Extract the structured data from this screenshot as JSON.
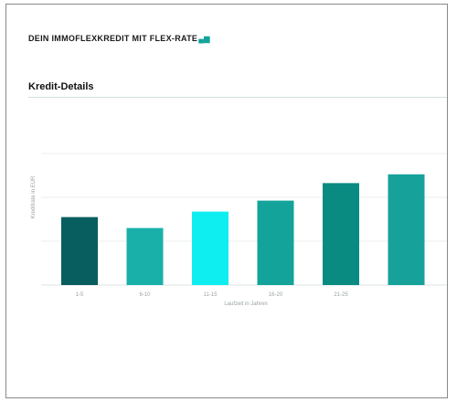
{
  "header": {
    "title": "DEIN IMMOFLEXKREDIT MIT FLEX-RATE",
    "title_mark": "▄▆"
  },
  "section": {
    "title": "Kredit-Details"
  },
  "chart_data": {
    "type": "bar",
    "categories": [
      "1-5",
      "6-10",
      "11-15",
      "16-20",
      "21-25",
      ""
    ],
    "values": [
      62,
      52,
      67,
      77,
      93,
      101
    ],
    "colors": [
      "#085e5e",
      "#19b0aa",
      "#0eeef0",
      "#13a39a",
      "#0a8b82",
      "#16a29a"
    ],
    "xlabel": "Laufzeit in Jahren",
    "ylabel": "Kreditrate in EUR",
    "ylim": [
      0,
      160
    ],
    "grid": true
  }
}
